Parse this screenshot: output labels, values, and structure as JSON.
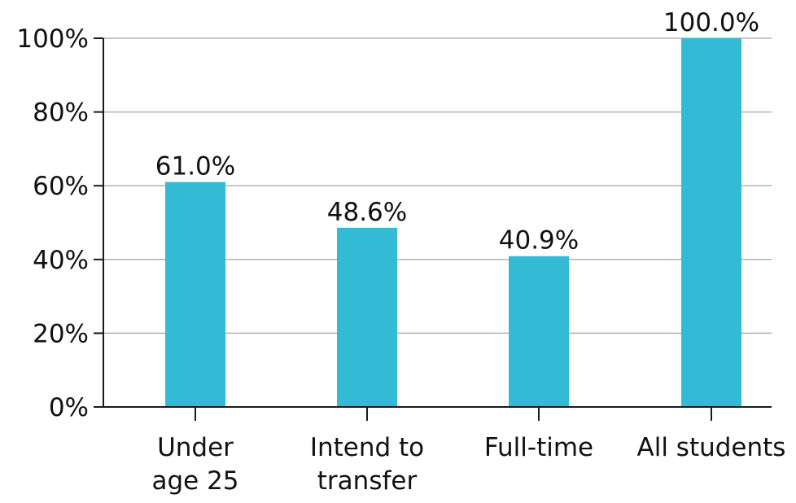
{
  "chart_data": {
    "type": "bar",
    "title": "",
    "xlabel": "",
    "ylabel": "",
    "categories": [
      [
        "Under",
        "age 25"
      ],
      [
        "Intend to",
        "transfer"
      ],
      [
        "Full-time"
      ],
      [
        "All students"
      ]
    ],
    "values": [
      61.0,
      48.6,
      40.9,
      100.0
    ],
    "data_labels": [
      "61.0%",
      "48.6%",
      "40.9%",
      "100.0%"
    ],
    "ylim": [
      0,
      100
    ],
    "yticks": [
      0,
      20,
      40,
      60,
      80,
      100
    ],
    "ytick_labels": [
      "0%",
      "20%",
      "40%",
      "60%",
      "80%",
      "100%"
    ],
    "grid": true,
    "legend": "none",
    "bar_color": "#33bbd6"
  }
}
